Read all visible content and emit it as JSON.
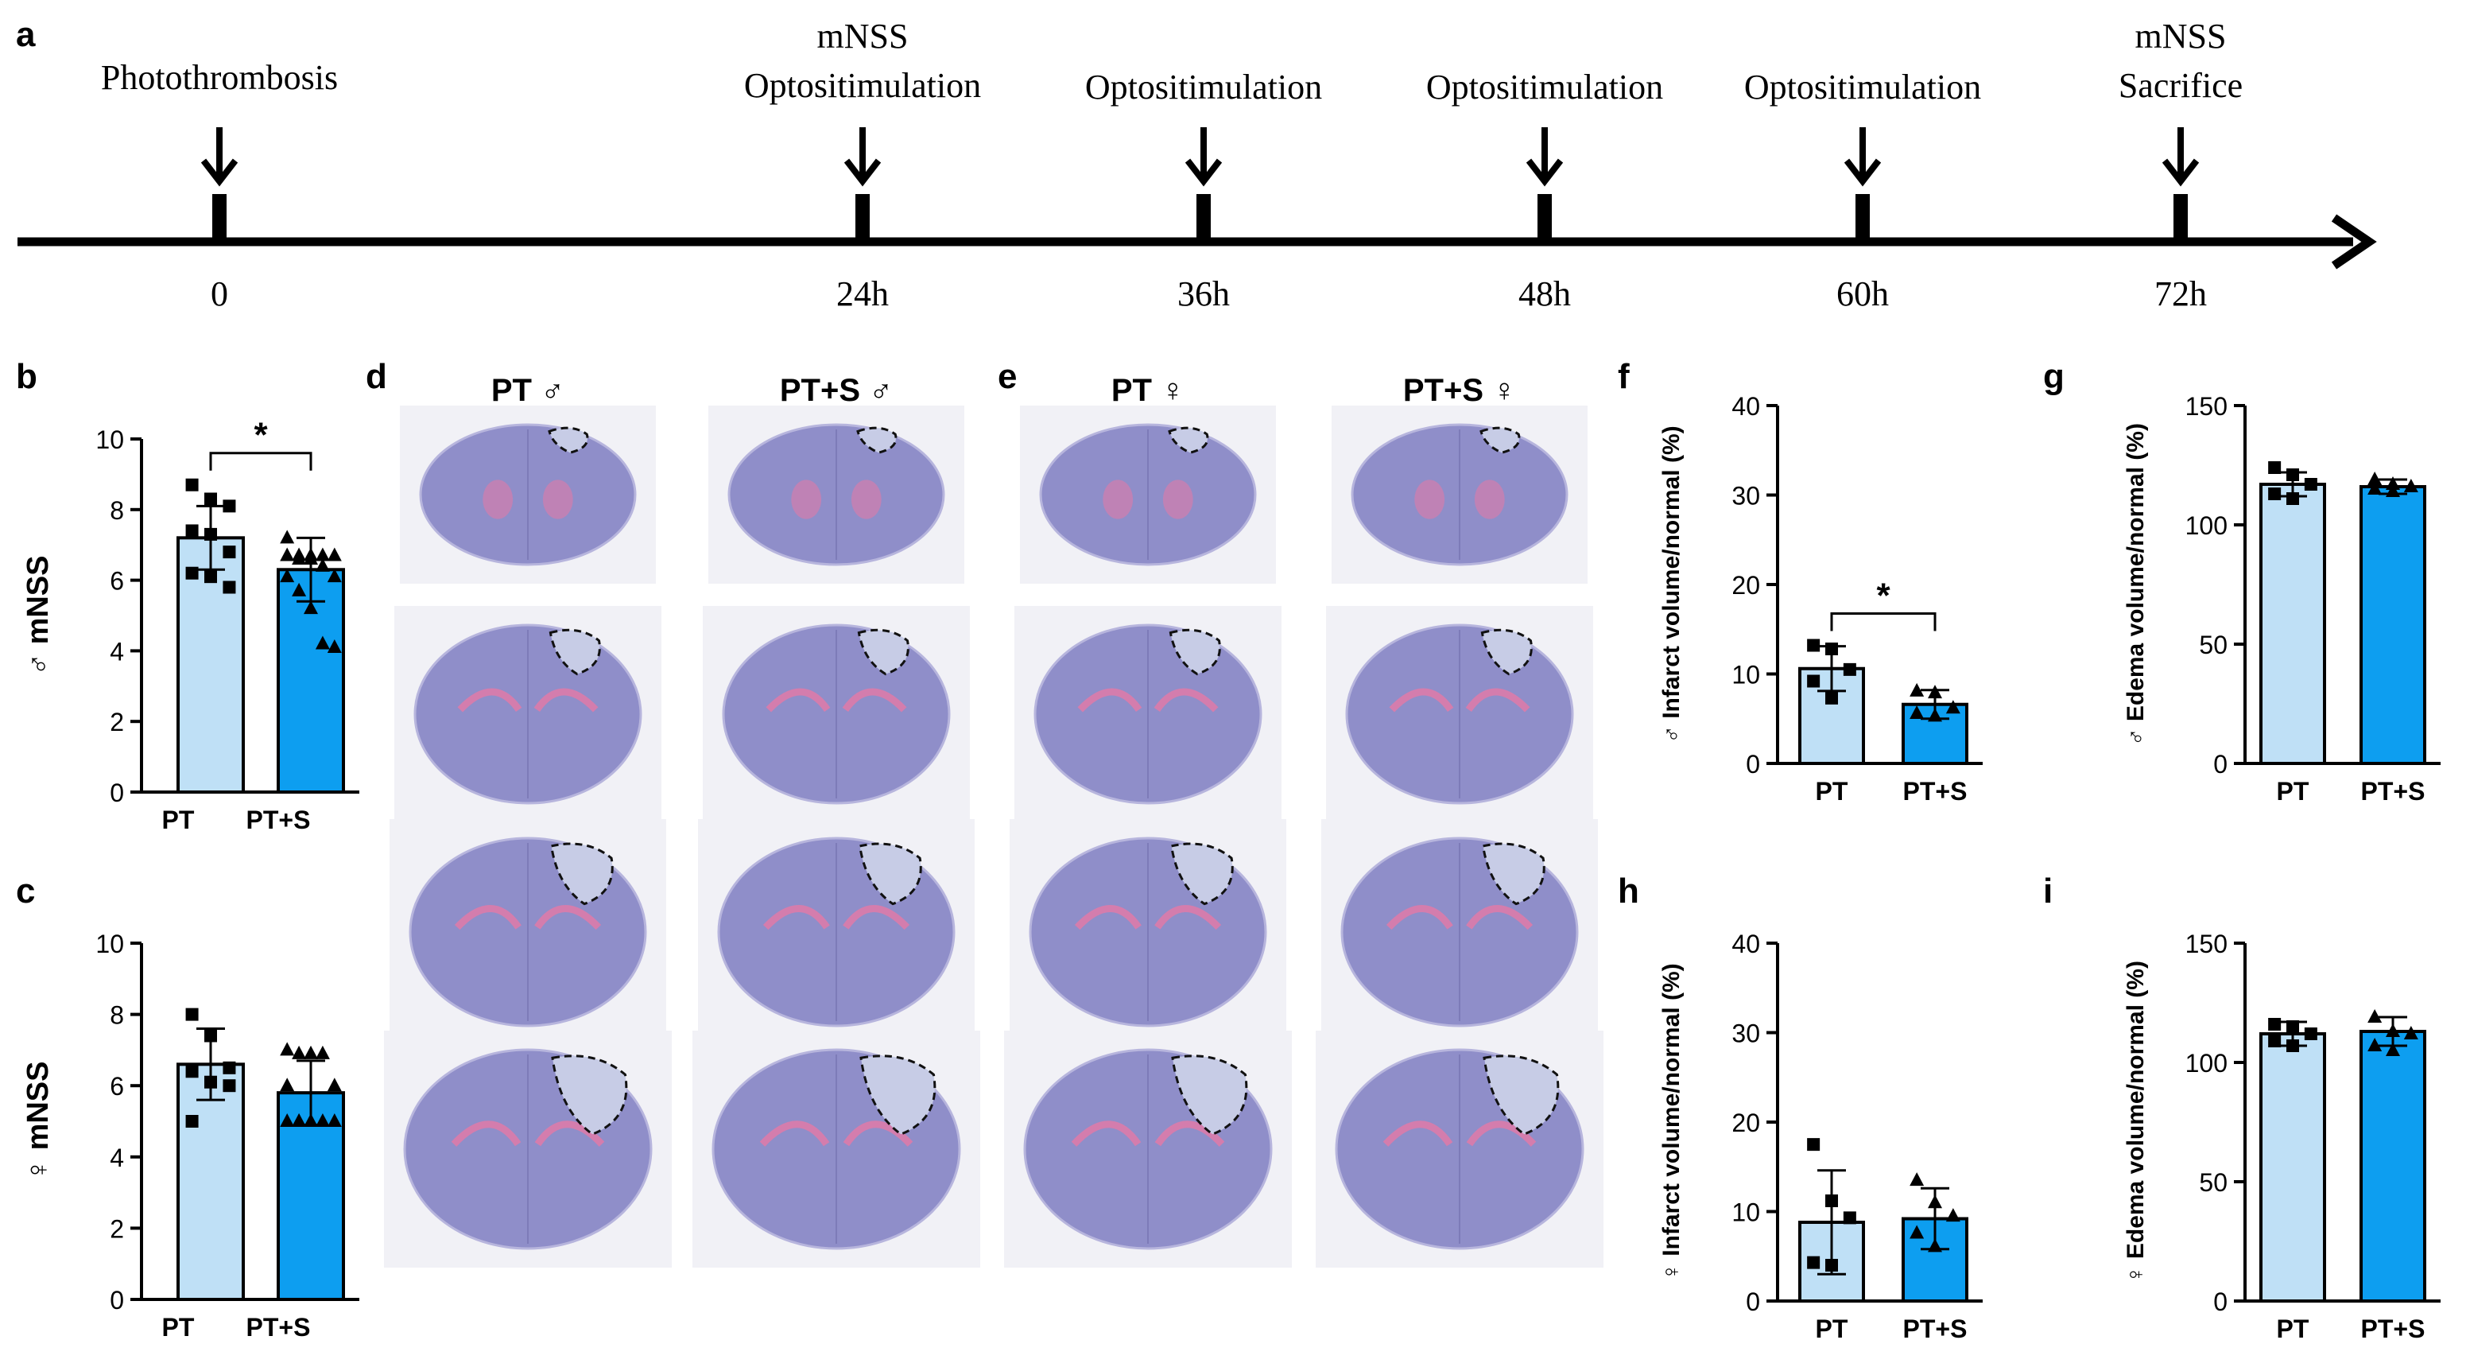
{
  "panel_letters": [
    "a",
    "b",
    "c",
    "d",
    "e",
    "f",
    "g",
    "h",
    "i"
  ],
  "colors": {
    "pt_fill": "#bfe0f6",
    "pts_fill": "#0d9ef0",
    "ink": "#000000",
    "tissue": "#8f8ec9",
    "tissue_pink": "#e07aa8",
    "infarct": "#c7cce6"
  },
  "timeline": {
    "events": [
      {
        "lines": [
          "Photothrombosis"
        ],
        "tick": "0"
      },
      {
        "lines": [
          "mNSS",
          "Optositimulation"
        ],
        "tick": "24h"
      },
      {
        "lines": [
          "Optositimulation"
        ],
        "tick": "36h"
      },
      {
        "lines": [
          "Optositimulation"
        ],
        "tick": "48h"
      },
      {
        "lines": [
          "Optositimulation"
        ],
        "tick": "60h"
      },
      {
        "lines": [
          "mNSS",
          "Sacrifice"
        ],
        "tick": "72h"
      }
    ]
  },
  "histology": {
    "column_titles": [
      "PT ♂",
      "PT+S ♂",
      "PT ♀",
      "PT+S ♀"
    ]
  },
  "chart_data": [
    {
      "panel": "b",
      "type": "bar",
      "ylabel": "♂ mNSS",
      "categories": [
        "PT",
        "PT+S"
      ],
      "values": [
        7.2,
        6.3
      ],
      "errors": [
        0.9,
        0.9
      ],
      "ylim": [
        0,
        10
      ],
      "yticks": [
        "0",
        "2",
        "4",
        "6",
        "8",
        "10"
      ],
      "points": [
        [
          8.7,
          8.3,
          8.1,
          7.4,
          7.3,
          6.8,
          6.2,
          6.1,
          5.8
        ],
        [
          7.2,
          6.7,
          6.7,
          6.7,
          6.7,
          6.7,
          6.6,
          6.6,
          6.4,
          6.1,
          6.1,
          5.7,
          5.2,
          4.2,
          4.1
        ]
      ],
      "significance": "*"
    },
    {
      "panel": "c",
      "type": "bar",
      "ylabel": "♀ mNSS",
      "categories": [
        "PT",
        "PT+S"
      ],
      "values": [
        6.6,
        5.8
      ],
      "errors": [
        1.0,
        0.9
      ],
      "ylim": [
        0,
        10
      ],
      "yticks": [
        "0",
        "2",
        "4",
        "6",
        "8",
        "10"
      ],
      "points": [
        [
          8.0,
          7.4,
          6.5,
          6.4,
          6.1,
          6.0,
          5.0
        ],
        [
          7.0,
          6.9,
          6.9,
          6.9,
          6.0,
          6.0,
          5.0,
          5.0,
          5.0,
          5.0,
          5.0,
          5.0
        ]
      ],
      "significance": ""
    },
    {
      "panel": "f",
      "type": "bar",
      "ylabel": "♂ Infarct volume/normal (%)",
      "categories": [
        "PT",
        "PT+S"
      ],
      "values": [
        10.6,
        6.6
      ],
      "errors": [
        2.5,
        1.6
      ],
      "ylim": [
        0,
        40
      ],
      "yticks": [
        "0",
        "10",
        "20",
        "30",
        "40"
      ],
      "points": [
        [
          13.2,
          12.8,
          10.5,
          9.2,
          7.3
        ],
        [
          8.1,
          7.9,
          6.2,
          5.6,
          5.3
        ]
      ],
      "significance": "*"
    },
    {
      "panel": "g",
      "type": "bar",
      "ylabel": "♂ Edema volume/normal (%)",
      "categories": [
        "PT",
        "PT+S"
      ],
      "values": [
        117,
        116
      ],
      "errors": [
        5,
        3
      ],
      "ylim": [
        0,
        150
      ],
      "yticks": [
        "0",
        "50",
        "100",
        "150"
      ],
      "points": [
        [
          124,
          121,
          117,
          113,
          111
        ],
        [
          119,
          117,
          116,
          115,
          114
        ]
      ],
      "significance": ""
    },
    {
      "panel": "h",
      "type": "bar",
      "ylabel": "♀ Infarct volume/normal (%)",
      "categories": [
        "PT",
        "PT+S"
      ],
      "values": [
        8.8,
        9.2
      ],
      "errors": [
        5.8,
        3.4
      ],
      "ylim": [
        0,
        40
      ],
      "yticks": [
        "0",
        "10",
        "20",
        "30",
        "40"
      ],
      "points": [
        [
          17.5,
          11.2,
          9.3,
          4.3,
          4.0
        ],
        [
          13.5,
          11.0,
          9.5,
          7.6,
          6.1
        ]
      ],
      "significance": ""
    },
    {
      "panel": "i",
      "type": "bar",
      "ylabel": "♀ Edema volume/normal (%)",
      "categories": [
        "PT",
        "PT+S"
      ],
      "values": [
        112,
        113
      ],
      "errors": [
        5,
        6
      ],
      "ylim": [
        0,
        150
      ],
      "yticks": [
        "0",
        "50",
        "100",
        "150"
      ],
      "points": [
        [
          116,
          115,
          112,
          109,
          107
        ],
        [
          119,
          113,
          112,
          107,
          105
        ]
      ],
      "significance": ""
    }
  ]
}
